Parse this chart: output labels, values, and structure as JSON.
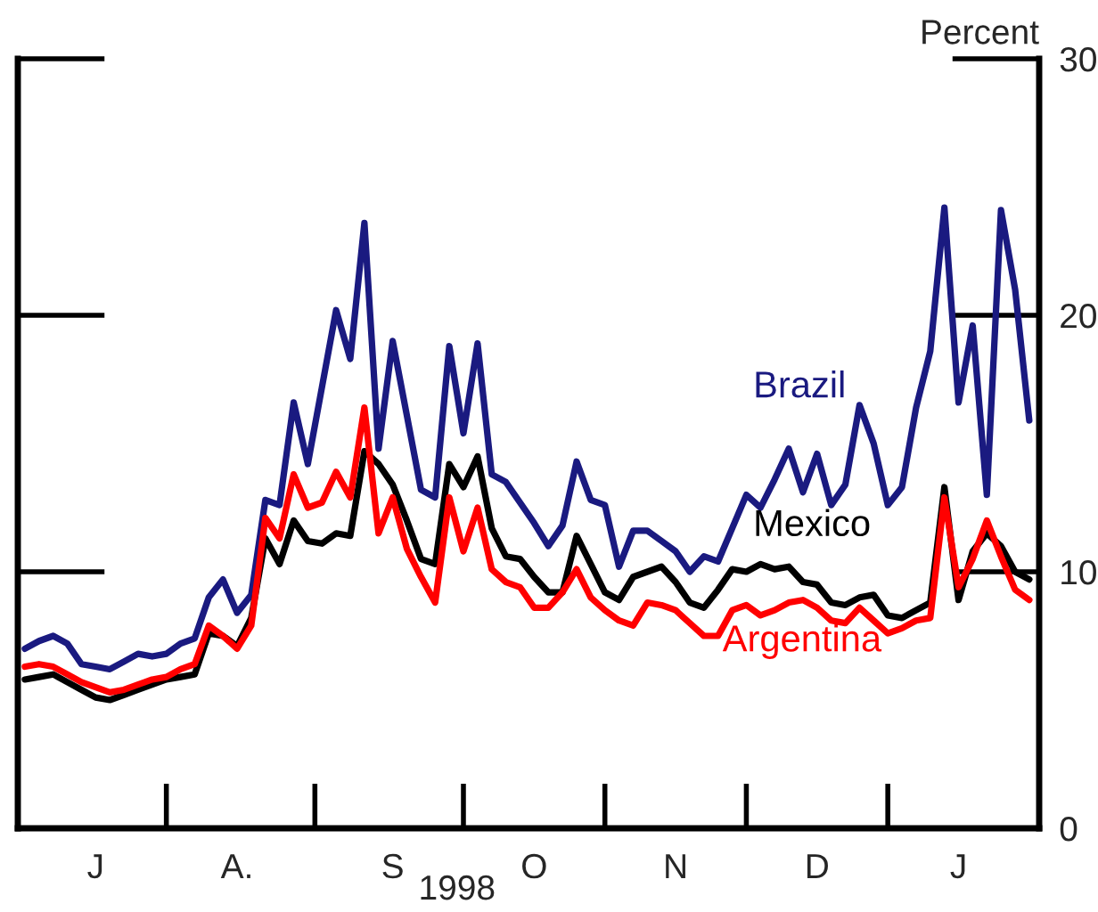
{
  "chart_data": {
    "type": "line",
    "ylabel": "Percent",
    "xlabel": "1998",
    "categories": [
      null,
      null,
      null,
      null,
      null,
      "J",
      null,
      null,
      null,
      null,
      null,
      null,
      null,
      null,
      null,
      "A.",
      null,
      null,
      null,
      null,
      null,
      null,
      null,
      null,
      null,
      null,
      "S",
      null,
      null,
      null,
      null,
      null,
      null,
      null,
      null,
      null,
      "O",
      null,
      null,
      null,
      null,
      null,
      null,
      null,
      null,
      null,
      "N",
      null,
      null,
      null,
      null,
      null,
      null,
      null,
      null,
      null,
      "D",
      null,
      null,
      null,
      null,
      null,
      null,
      null,
      null,
      null,
      "J",
      null,
      null,
      null,
      null,
      null
    ],
    "ylim": [
      0,
      30
    ],
    "yticks": [
      0,
      10,
      20,
      30
    ],
    "grid": false,
    "legend": false,
    "series": [
      {
        "name": "Brazil",
        "color": "#1a1a80",
        "values": [
          7.0,
          7.3,
          7.5,
          7.2,
          6.4,
          6.3,
          6.2,
          6.5,
          6.8,
          6.7,
          6.8,
          7.2,
          7.4,
          9.0,
          9.7,
          8.4,
          9.1,
          12.8,
          12.6,
          16.6,
          14.2,
          17.2,
          20.2,
          18.3,
          23.6,
          14.8,
          19.0,
          16.1,
          13.2,
          12.9,
          18.8,
          15.4,
          18.9,
          13.8,
          13.5,
          12.7,
          11.9,
          11.0,
          11.8,
          14.3,
          12.8,
          12.6,
          10.2,
          11.6,
          11.6,
          11.2,
          10.8,
          10.0,
          10.6,
          10.4,
          11.7,
          13.0,
          12.5,
          13.6,
          14.8,
          13.1,
          14.6,
          12.6,
          13.4,
          16.5,
          15.0,
          12.6,
          13.3,
          16.4,
          18.6,
          24.2,
          16.6,
          19.6,
          13.0,
          24.1,
          21.0,
          15.9
        ]
      },
      {
        "name": "Mexico",
        "color": "#000000",
        "values": [
          5.8,
          5.9,
          6.0,
          5.7,
          5.4,
          5.1,
          5.0,
          5.2,
          5.4,
          5.6,
          5.8,
          5.9,
          6.0,
          7.6,
          7.5,
          7.1,
          8.2,
          11.3,
          10.3,
          12.0,
          11.2,
          11.1,
          11.5,
          11.4,
          14.7,
          14.2,
          13.4,
          12.0,
          10.5,
          10.3,
          14.2,
          13.3,
          14.5,
          11.7,
          10.6,
          10.5,
          9.8,
          9.2,
          9.2,
          11.4,
          10.3,
          9.2,
          8.9,
          9.8,
          10.0,
          10.2,
          9.6,
          8.8,
          8.6,
          9.3,
          10.1,
          10.0,
          10.3,
          10.1,
          10.2,
          9.6,
          9.5,
          8.8,
          8.7,
          9.0,
          9.1,
          8.3,
          8.2,
          8.5,
          8.8,
          13.3,
          8.9,
          10.8,
          11.5,
          11.0,
          10.0,
          9.7
        ]
      },
      {
        "name": "Argentina",
        "color": "#ff0000",
        "values": [
          6.3,
          6.4,
          6.3,
          6.0,
          5.7,
          5.5,
          5.3,
          5.4,
          5.6,
          5.8,
          5.9,
          6.2,
          6.4,
          7.9,
          7.5,
          7.0,
          7.9,
          12.1,
          11.3,
          13.8,
          12.5,
          12.7,
          13.9,
          12.9,
          16.4,
          11.5,
          12.9,
          10.9,
          9.8,
          8.8,
          12.9,
          10.8,
          12.5,
          10.1,
          9.6,
          9.4,
          8.6,
          8.6,
          9.2,
          10.1,
          9.0,
          8.5,
          8.1,
          7.9,
          8.8,
          8.7,
          8.5,
          8.0,
          7.5,
          7.5,
          8.5,
          8.7,
          8.3,
          8.5,
          8.8,
          8.9,
          8.6,
          8.1,
          8.0,
          8.6,
          8.1,
          7.6,
          7.8,
          8.1,
          8.2,
          12.9,
          9.4,
          10.5,
          12.0,
          10.6,
          9.3,
          8.9
        ]
      }
    ]
  }
}
